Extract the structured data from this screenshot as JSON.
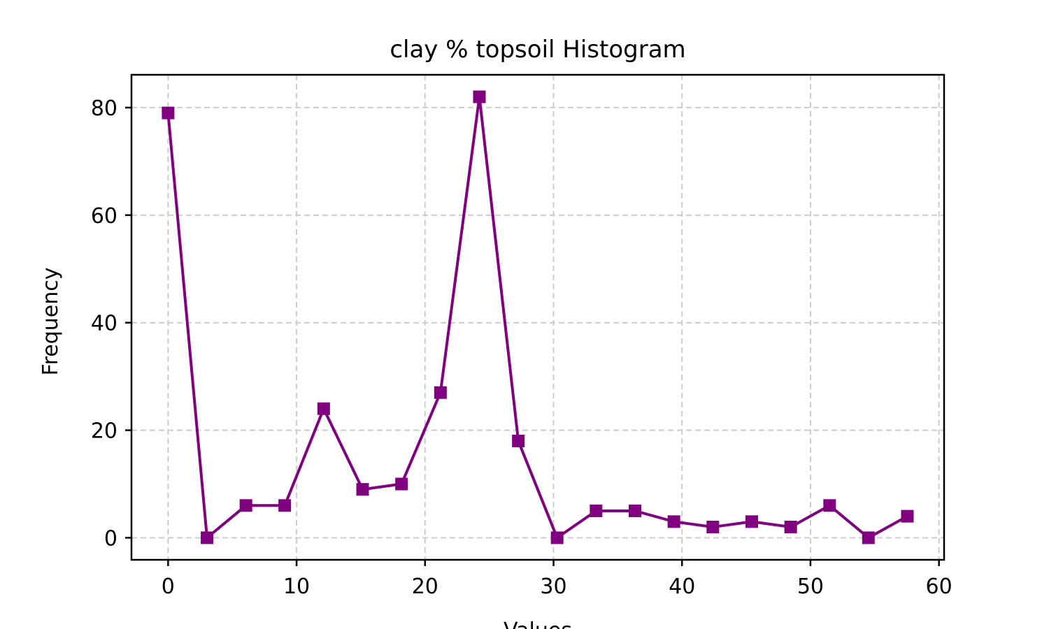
{
  "chart_data": {
    "type": "line",
    "title": "clay % topsoil Histogram",
    "xlabel": "Values",
    "ylabel": "Frequency",
    "xlim": [
      -2.85,
      60.4
    ],
    "ylim": [
      -4.1,
      86.1
    ],
    "xticks": [
      0,
      10,
      20,
      30,
      40,
      50,
      60
    ],
    "yticks": [
      0,
      20,
      40,
      60,
      80
    ],
    "grid": true,
    "series": [
      {
        "color": "#800080",
        "marker": "square",
        "x": [
          0.0,
          3.03,
          6.06,
          9.08,
          12.11,
          15.14,
          18.17,
          21.2,
          24.23,
          27.26,
          30.28,
          33.31,
          36.34,
          39.37,
          42.4,
          45.43,
          48.46,
          51.49,
          54.51,
          57.54
        ],
        "values": [
          79,
          0,
          6,
          6,
          24,
          9,
          10,
          27,
          82,
          18,
          0,
          5,
          5,
          3,
          2,
          3,
          2,
          6,
          0,
          4
        ]
      }
    ]
  }
}
